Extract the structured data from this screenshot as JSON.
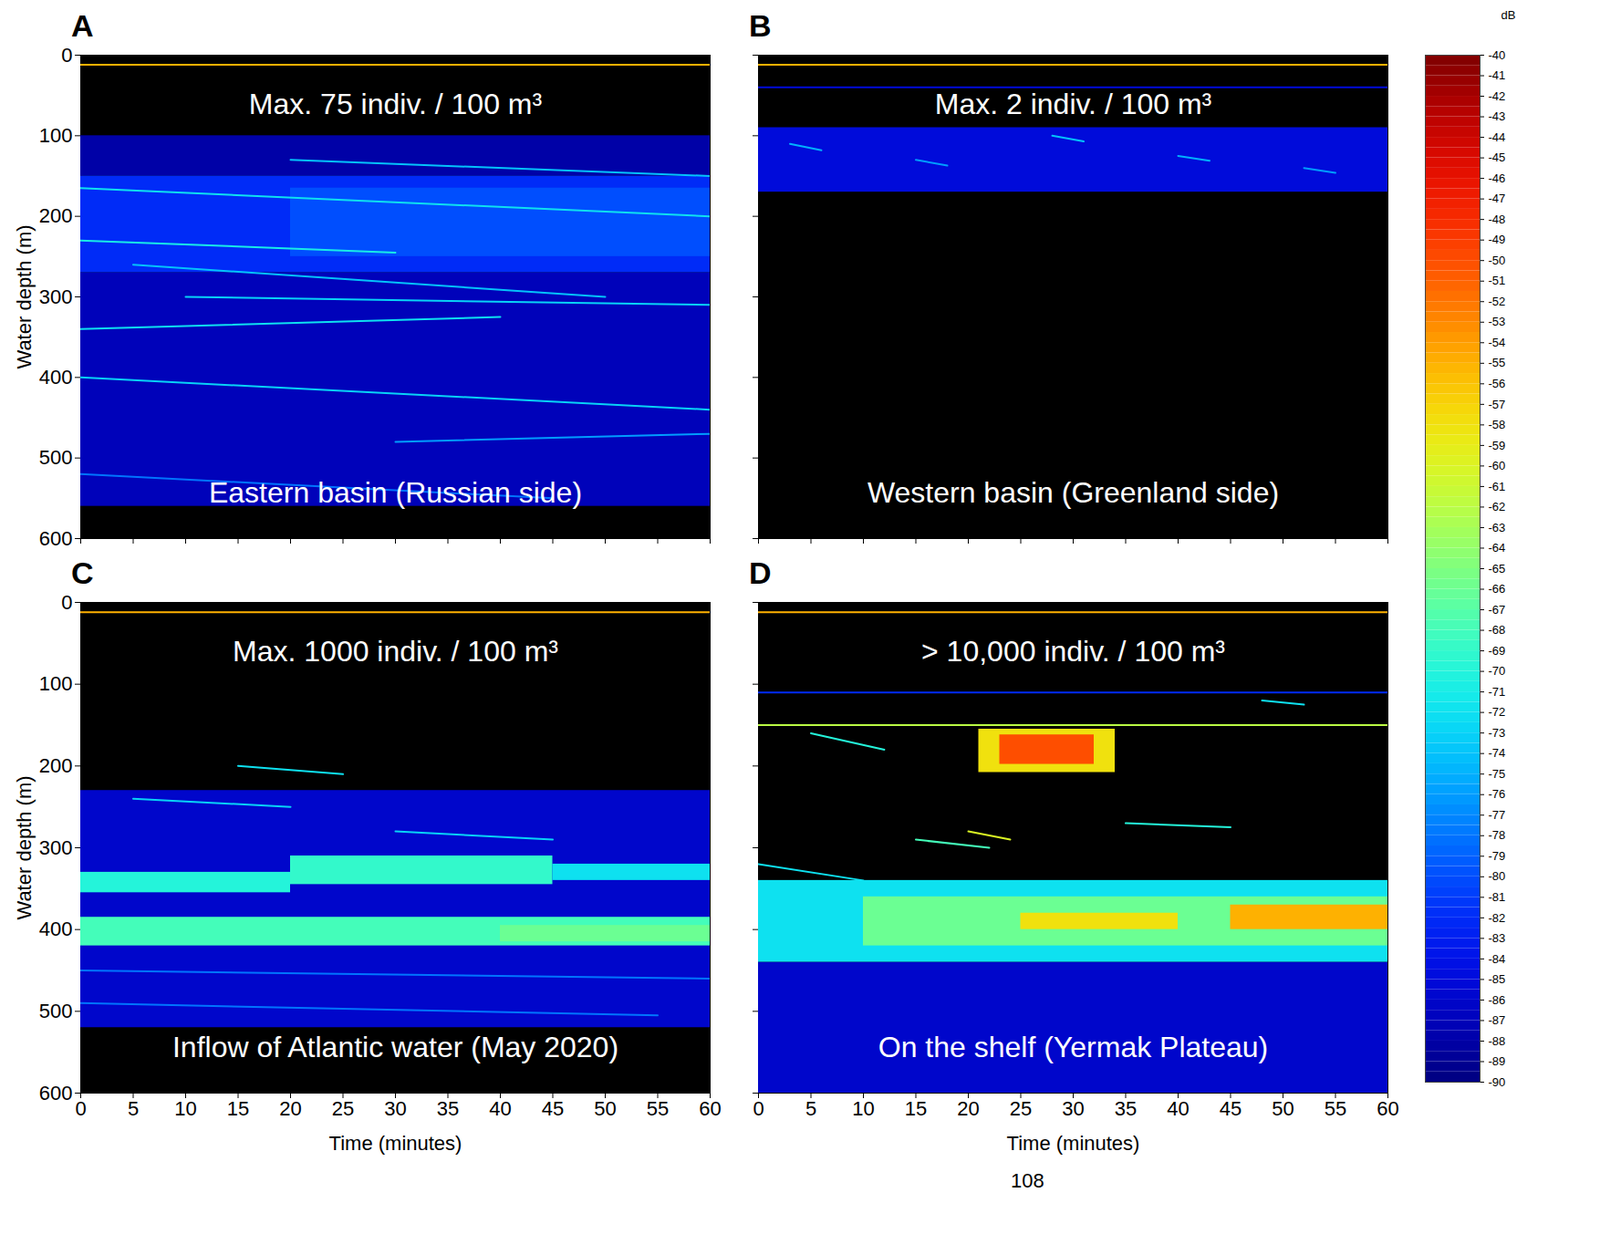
{
  "chart_data": [
    {
      "type": "heatmap",
      "panel": "A",
      "title": "Max. 75 indiv. / 100 m³",
      "annotation": "Eastern basin (Russian side)",
      "ylabel": "Water depth (m)",
      "tick_labels": "y",
      "xlim": [
        0,
        60
      ],
      "xticks": [
        0,
        5,
        10,
        15,
        20,
        25,
        30,
        35,
        40,
        45,
        50,
        55,
        60
      ],
      "ylim": [
        600,
        0
      ],
      "yticks": [
        0,
        100,
        200,
        300,
        400,
        500,
        600
      ],
      "lines": [
        {
          "depth": 12,
          "db": -55
        }
      ],
      "layers": [
        {
          "t0": 0,
          "t1": 60,
          "d0": 100,
          "d1": 150,
          "db": -88
        },
        {
          "t0": 0,
          "t1": 60,
          "d0": 270,
          "d1": 560,
          "db": -87
        },
        {
          "t0": 0,
          "t1": 60,
          "d0": 150,
          "d1": 270,
          "db": -82
        },
        {
          "t0": 20,
          "t1": 60,
          "d0": 165,
          "d1": 250,
          "db": -80
        }
      ],
      "traces": [
        {
          "t": [
            0,
            60
          ],
          "depth": [
            165,
            200
          ],
          "db": -72
        },
        {
          "t": [
            10,
            60
          ],
          "depth": [
            300,
            310
          ],
          "db": -73
        },
        {
          "t": [
            0,
            40
          ],
          "depth": [
            340,
            325
          ],
          "db": -72
        },
        {
          "t": [
            0,
            60
          ],
          "depth": [
            400,
            440
          ],
          "db": -73
        },
        {
          "t": [
            20,
            60
          ],
          "depth": [
            130,
            150
          ],
          "db": -74
        },
        {
          "t": [
            0,
            30
          ],
          "depth": [
            230,
            245
          ],
          "db": -71
        },
        {
          "t": [
            30,
            60
          ],
          "depth": [
            480,
            470
          ],
          "db": -76
        },
        {
          "t": [
            0,
            45
          ],
          "depth": [
            520,
            550
          ],
          "db": -78
        },
        {
          "t": [
            5,
            50
          ],
          "depth": [
            260,
            300
          ],
          "db": -74
        }
      ]
    },
    {
      "type": "heatmap",
      "panel": "B",
      "title": "Max. 2 indiv. / 100 m³",
      "annotation": "Western basin (Greenland side)",
      "tick_labels": false,
      "xlim": [
        0,
        60
      ],
      "xticks": [
        0,
        5,
        10,
        15,
        20,
        25,
        30,
        35,
        40,
        45,
        50,
        55,
        60
      ],
      "ylim": [
        600,
        0
      ],
      "yticks": [
        0,
        100,
        200,
        300,
        400,
        500,
        600
      ],
      "lines": [
        {
          "depth": 12,
          "db": -55
        },
        {
          "depth": 40,
          "db": -85
        }
      ],
      "layers": [
        {
          "t0": 0,
          "t1": 60,
          "d0": 90,
          "d1": 170,
          "db": -85
        }
      ],
      "traces": [
        {
          "t": [
            3,
            6
          ],
          "depth": [
            110,
            118
          ],
          "db": -75
        },
        {
          "t": [
            15,
            18
          ],
          "depth": [
            130,
            137
          ],
          "db": -76
        },
        {
          "t": [
            28,
            31
          ],
          "depth": [
            100,
            107
          ],
          "db": -74
        },
        {
          "t": [
            40,
            43
          ],
          "depth": [
            125,
            131
          ],
          "db": -75
        },
        {
          "t": [
            52,
            55
          ],
          "depth": [
            140,
            146
          ],
          "db": -76
        }
      ]
    },
    {
      "type": "heatmap",
      "panel": "C",
      "title": "Max. 1000 indiv. / 100 m³",
      "annotation": "Inflow of Atlantic water (May 2020)",
      "xlabel": "Time (minutes)",
      "ylabel": "Water depth (m)",
      "tick_labels": true,
      "xlim": [
        0,
        60
      ],
      "xticks": [
        0,
        5,
        10,
        15,
        20,
        25,
        30,
        35,
        40,
        45,
        50,
        55,
        60
      ],
      "ylim": [
        600,
        0
      ],
      "yticks": [
        0,
        100,
        200,
        300,
        400,
        500,
        600
      ],
      "lines": [
        {
          "depth": 12,
          "db": -55
        }
      ],
      "layers": [
        {
          "t0": 0,
          "t1": 60,
          "d0": 230,
          "d1": 520,
          "db": -86
        },
        {
          "t0": 0,
          "t1": 20,
          "d0": 330,
          "d1": 355,
          "db": -70
        },
        {
          "t0": 20,
          "t1": 45,
          "d0": 310,
          "d1": 345,
          "db": -69
        },
        {
          "t0": 45,
          "t1": 60,
          "d0": 320,
          "d1": 340,
          "db": -72
        },
        {
          "t0": 0,
          "t1": 60,
          "d0": 385,
          "d1": 420,
          "db": -68
        },
        {
          "t0": 40,
          "t1": 60,
          "d0": 395,
          "d1": 415,
          "db": -66
        }
      ],
      "traces": [
        {
          "t": [
            5,
            20
          ],
          "depth": [
            240,
            250
          ],
          "db": -73
        },
        {
          "t": [
            15,
            25
          ],
          "depth": [
            200,
            210
          ],
          "db": -72
        },
        {
          "t": [
            30,
            45
          ],
          "depth": [
            280,
            290
          ],
          "db": -73
        },
        {
          "t": [
            0,
            60
          ],
          "depth": [
            450,
            460
          ],
          "db": -78
        },
        {
          "t": [
            0,
            55
          ],
          "depth": [
            490,
            505
          ],
          "db": -78
        }
      ]
    },
    {
      "type": "heatmap",
      "panel": "D",
      "title": "> 10,000 indiv. / 100 m³",
      "annotation": "On the shelf (Yermak Plateau)",
      "xlabel": "Time (minutes)",
      "tick_labels": "x",
      "xlim": [
        0,
        60
      ],
      "xticks": [
        0,
        5,
        10,
        15,
        20,
        25,
        30,
        35,
        40,
        45,
        50,
        55,
        60
      ],
      "ylim": [
        600,
        0
      ],
      "yticks": [
        0,
        100,
        200,
        300,
        400,
        500,
        600
      ],
      "lines": [
        {
          "depth": 12,
          "db": -55
        },
        {
          "depth": 110,
          "db": -82
        },
        {
          "depth": 150,
          "db": -62
        }
      ],
      "layers": [
        {
          "t0": 0,
          "t1": 60,
          "d0": 440,
          "d1": 600,
          "db": -86
        },
        {
          "t0": 21,
          "t1": 34,
          "d0": 155,
          "d1": 208,
          "db": -58
        },
        {
          "t0": 23,
          "t1": 32,
          "d0": 162,
          "d1": 198,
          "db": -50
        },
        {
          "t0": 0,
          "t1": 60,
          "d0": 340,
          "d1": 440,
          "db": -72
        },
        {
          "t0": 10,
          "t1": 60,
          "d0": 360,
          "d1": 420,
          "db": -66
        },
        {
          "t0": 25,
          "t1": 40,
          "d0": 380,
          "d1": 400,
          "db": -58
        },
        {
          "t0": 45,
          "t1": 60,
          "d0": 370,
          "d1": 400,
          "db": -55
        }
      ],
      "traces": [
        {
          "t": [
            5,
            12
          ],
          "depth": [
            160,
            180
          ],
          "db": -70
        },
        {
          "t": [
            15,
            22
          ],
          "depth": [
            290,
            300
          ],
          "db": -68
        },
        {
          "t": [
            20,
            24
          ],
          "depth": [
            280,
            290
          ],
          "db": -60
        },
        {
          "t": [
            35,
            45
          ],
          "depth": [
            270,
            275
          ],
          "db": -70
        },
        {
          "t": [
            0,
            10
          ],
          "depth": [
            320,
            340
          ],
          "db": -72
        },
        {
          "t": [
            48,
            52
          ],
          "depth": [
            120,
            125
          ],
          "db": -72
        }
      ]
    }
  ],
  "colorbar": {
    "label": "dB",
    "range": [
      -90,
      -40
    ],
    "ticks": [
      -40,
      -41,
      -42,
      -43,
      -44,
      -45,
      -46,
      -47,
      -48,
      -49,
      -50,
      -51,
      -52,
      -53,
      -54,
      -55,
      -56,
      -57,
      -58,
      -59,
      -60,
      -61,
      -62,
      -63,
      -64,
      -65,
      -66,
      -67,
      -68,
      -69,
      -70,
      -71,
      -72,
      -73,
      -74,
      -75,
      -76,
      -77,
      -78,
      -79,
      -80,
      -81,
      -82,
      -83,
      -84,
      -85,
      -86,
      -87,
      -88,
      -89,
      -90
    ]
  },
  "page_number": "108"
}
